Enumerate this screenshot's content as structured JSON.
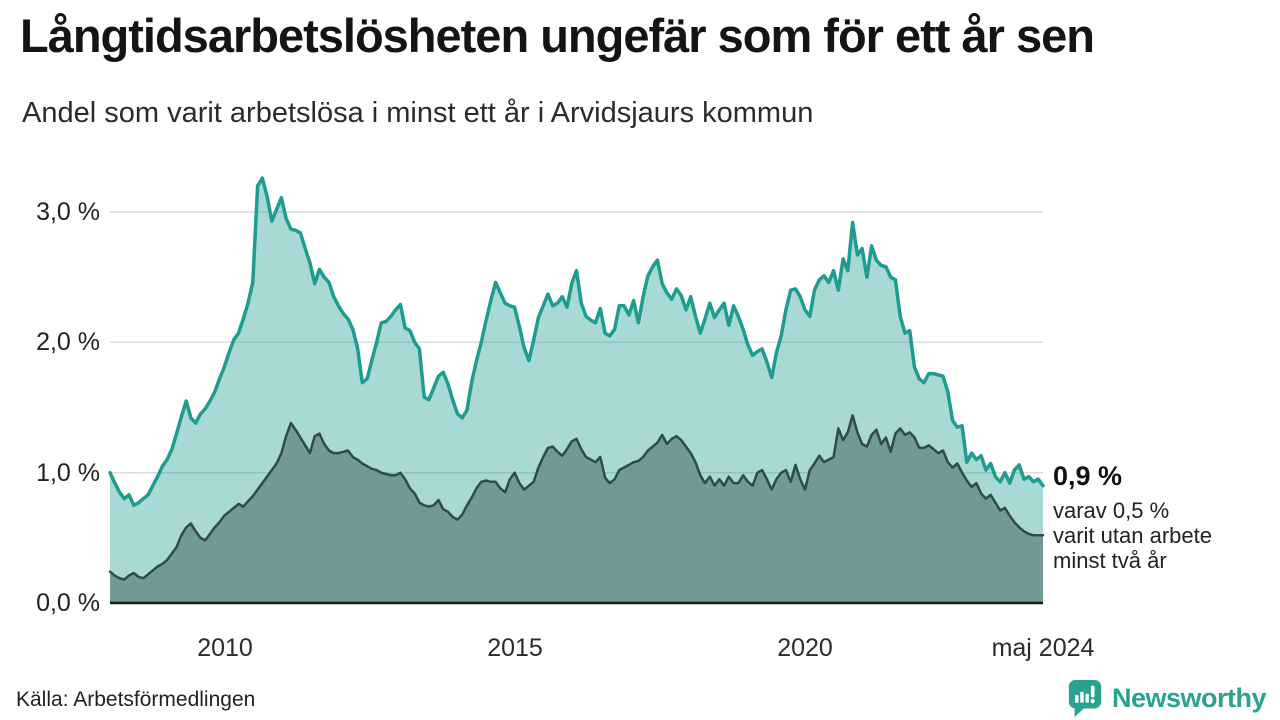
{
  "header": {
    "title": "Långtidsarbetslösheten ungefär som för ett år sen",
    "subtitle": "Andel som varit arbetslösa i minst ett år i Arvidsjaurs kommun"
  },
  "chart_data": {
    "type": "area",
    "unit": "%",
    "x_start": "2008-01",
    "x_end": "2024-05",
    "x_interval": "monthly",
    "grid": true,
    "grid_color": "#dcdce0",
    "axis_color": "#1a1a1a",
    "ylim": [
      0,
      3.35
    ],
    "y_tick_values": [
      0,
      1,
      2,
      3
    ],
    "y_tick_labels": [
      "0,0 %",
      "1,0 %",
      "2,0 %",
      "3,0 %"
    ],
    "x_tick_labels": [
      "2010",
      "2015",
      "2020",
      "maj 2024"
    ],
    "series": [
      {
        "name": "Andel arbetslösa minst ett år",
        "color": "#1E9C8F",
        "fill": "rgba(30,156,143,0.38)",
        "stroke_width": 3.5,
        "last_value": 0.9,
        "values": [
          1.0,
          0.92,
          0.85,
          0.8,
          0.83,
          0.75,
          0.77,
          0.8,
          0.83,
          0.9,
          0.97,
          1.05,
          1.1,
          1.18,
          1.3,
          1.43,
          1.55,
          1.42,
          1.38,
          1.45,
          1.49,
          1.55,
          1.62,
          1.72,
          1.81,
          1.92,
          2.02,
          2.07,
          2.18,
          2.3,
          2.46,
          3.2,
          3.26,
          3.12,
          2.93,
          3.02,
          3.11,
          2.95,
          2.87,
          2.86,
          2.84,
          2.72,
          2.61,
          2.45,
          2.56,
          2.5,
          2.46,
          2.35,
          2.28,
          2.22,
          2.18,
          2.1,
          1.96,
          1.69,
          1.72,
          1.86,
          2.0,
          2.15,
          2.16,
          2.2,
          2.25,
          2.29,
          2.11,
          2.09,
          2.0,
          1.95,
          1.58,
          1.56,
          1.65,
          1.74,
          1.77,
          1.68,
          1.56,
          1.45,
          1.42,
          1.48,
          1.7,
          1.86,
          2.0,
          2.17,
          2.32,
          2.46,
          2.38,
          2.3,
          2.28,
          2.27,
          2.12,
          1.96,
          1.86,
          2.02,
          2.19,
          2.28,
          2.37,
          2.28,
          2.3,
          2.35,
          2.27,
          2.45,
          2.55,
          2.3,
          2.2,
          2.17,
          2.15,
          2.26,
          2.07,
          2.05,
          2.1,
          2.28,
          2.28,
          2.21,
          2.32,
          2.15,
          2.35,
          2.51,
          2.58,
          2.63,
          2.45,
          2.38,
          2.33,
          2.41,
          2.36,
          2.25,
          2.35,
          2.2,
          2.07,
          2.18,
          2.3,
          2.19,
          2.25,
          2.3,
          2.13,
          2.28,
          2.2,
          2.1,
          1.98,
          1.9,
          1.93,
          1.95,
          1.85,
          1.73,
          1.92,
          2.05,
          2.25,
          2.4,
          2.41,
          2.35,
          2.25,
          2.2,
          2.4,
          2.48,
          2.51,
          2.46,
          2.55,
          2.4,
          2.64,
          2.55,
          2.92,
          2.67,
          2.72,
          2.5,
          2.74,
          2.63,
          2.59,
          2.58,
          2.5,
          2.48,
          2.2,
          2.07,
          2.09,
          1.81,
          1.72,
          1.69,
          1.76,
          1.76,
          1.75,
          1.74,
          1.62,
          1.4,
          1.35,
          1.36,
          1.08,
          1.15,
          1.1,
          1.13,
          1.02,
          1.07,
          0.97,
          0.93,
          1.0,
          0.92,
          1.02,
          1.06,
          0.95,
          0.97,
          0.93,
          0.95,
          0.9
        ]
      },
      {
        "name": "varav arbetslösa minst två år",
        "color": "#2F4B4A",
        "fill": "#719A96",
        "stroke_width": 2.5,
        "last_value": 0.5,
        "values": [
          0.24,
          0.21,
          0.19,
          0.18,
          0.21,
          0.23,
          0.2,
          0.19,
          0.22,
          0.25,
          0.28,
          0.3,
          0.33,
          0.38,
          0.43,
          0.52,
          0.58,
          0.61,
          0.55,
          0.5,
          0.48,
          0.53,
          0.58,
          0.62,
          0.67,
          0.7,
          0.73,
          0.76,
          0.74,
          0.78,
          0.82,
          0.87,
          0.92,
          0.97,
          1.02,
          1.07,
          1.15,
          1.28,
          1.38,
          1.33,
          1.27,
          1.21,
          1.15,
          1.28,
          1.3,
          1.22,
          1.17,
          1.15,
          1.15,
          1.16,
          1.17,
          1.12,
          1.1,
          1.07,
          1.05,
          1.03,
          1.02,
          1.0,
          0.99,
          0.98,
          0.98,
          1.0,
          0.95,
          0.88,
          0.84,
          0.77,
          0.75,
          0.74,
          0.75,
          0.79,
          0.72,
          0.7,
          0.66,
          0.64,
          0.68,
          0.75,
          0.81,
          0.88,
          0.93,
          0.94,
          0.93,
          0.93,
          0.88,
          0.85,
          0.95,
          1.0,
          0.92,
          0.87,
          0.9,
          0.93,
          1.04,
          1.12,
          1.19,
          1.2,
          1.16,
          1.13,
          1.18,
          1.24,
          1.26,
          1.18,
          1.12,
          1.1,
          1.08,
          1.12,
          0.96,
          0.92,
          0.95,
          1.02,
          1.04,
          1.06,
          1.08,
          1.09,
          1.12,
          1.17,
          1.2,
          1.23,
          1.29,
          1.22,
          1.26,
          1.28,
          1.25,
          1.2,
          1.15,
          1.08,
          0.98,
          0.92,
          0.97,
          0.9,
          0.95,
          0.9,
          0.97,
          0.92,
          0.92,
          0.98,
          0.93,
          0.9,
          1.0,
          1.02,
          0.95,
          0.87,
          0.95,
          1.0,
          1.02,
          0.93,
          1.06,
          0.95,
          0.87,
          1.02,
          1.07,
          1.13,
          1.08,
          1.1,
          1.12,
          1.34,
          1.25,
          1.31,
          1.44,
          1.31,
          1.22,
          1.2,
          1.29,
          1.33,
          1.22,
          1.27,
          1.16,
          1.3,
          1.34,
          1.29,
          1.31,
          1.27,
          1.19,
          1.19,
          1.21,
          1.18,
          1.15,
          1.17,
          1.08,
          1.04,
          1.07,
          1.0,
          0.94,
          0.89,
          0.92,
          0.84,
          0.8,
          0.83,
          0.77,
          0.71,
          0.73,
          0.67,
          0.62,
          0.58,
          0.55,
          0.53,
          0.52,
          0.52,
          0.52
        ]
      }
    ],
    "end_labels": {
      "value": "0,9 %",
      "line1": "varav 0,5 %",
      "line2": "varit utan arbete",
      "line3": "minst två år"
    }
  },
  "footer": {
    "source": "Källa: Arbetsförmedlingen",
    "logo_text": "Newsworthy",
    "logo_color": "#2BA18F"
  }
}
